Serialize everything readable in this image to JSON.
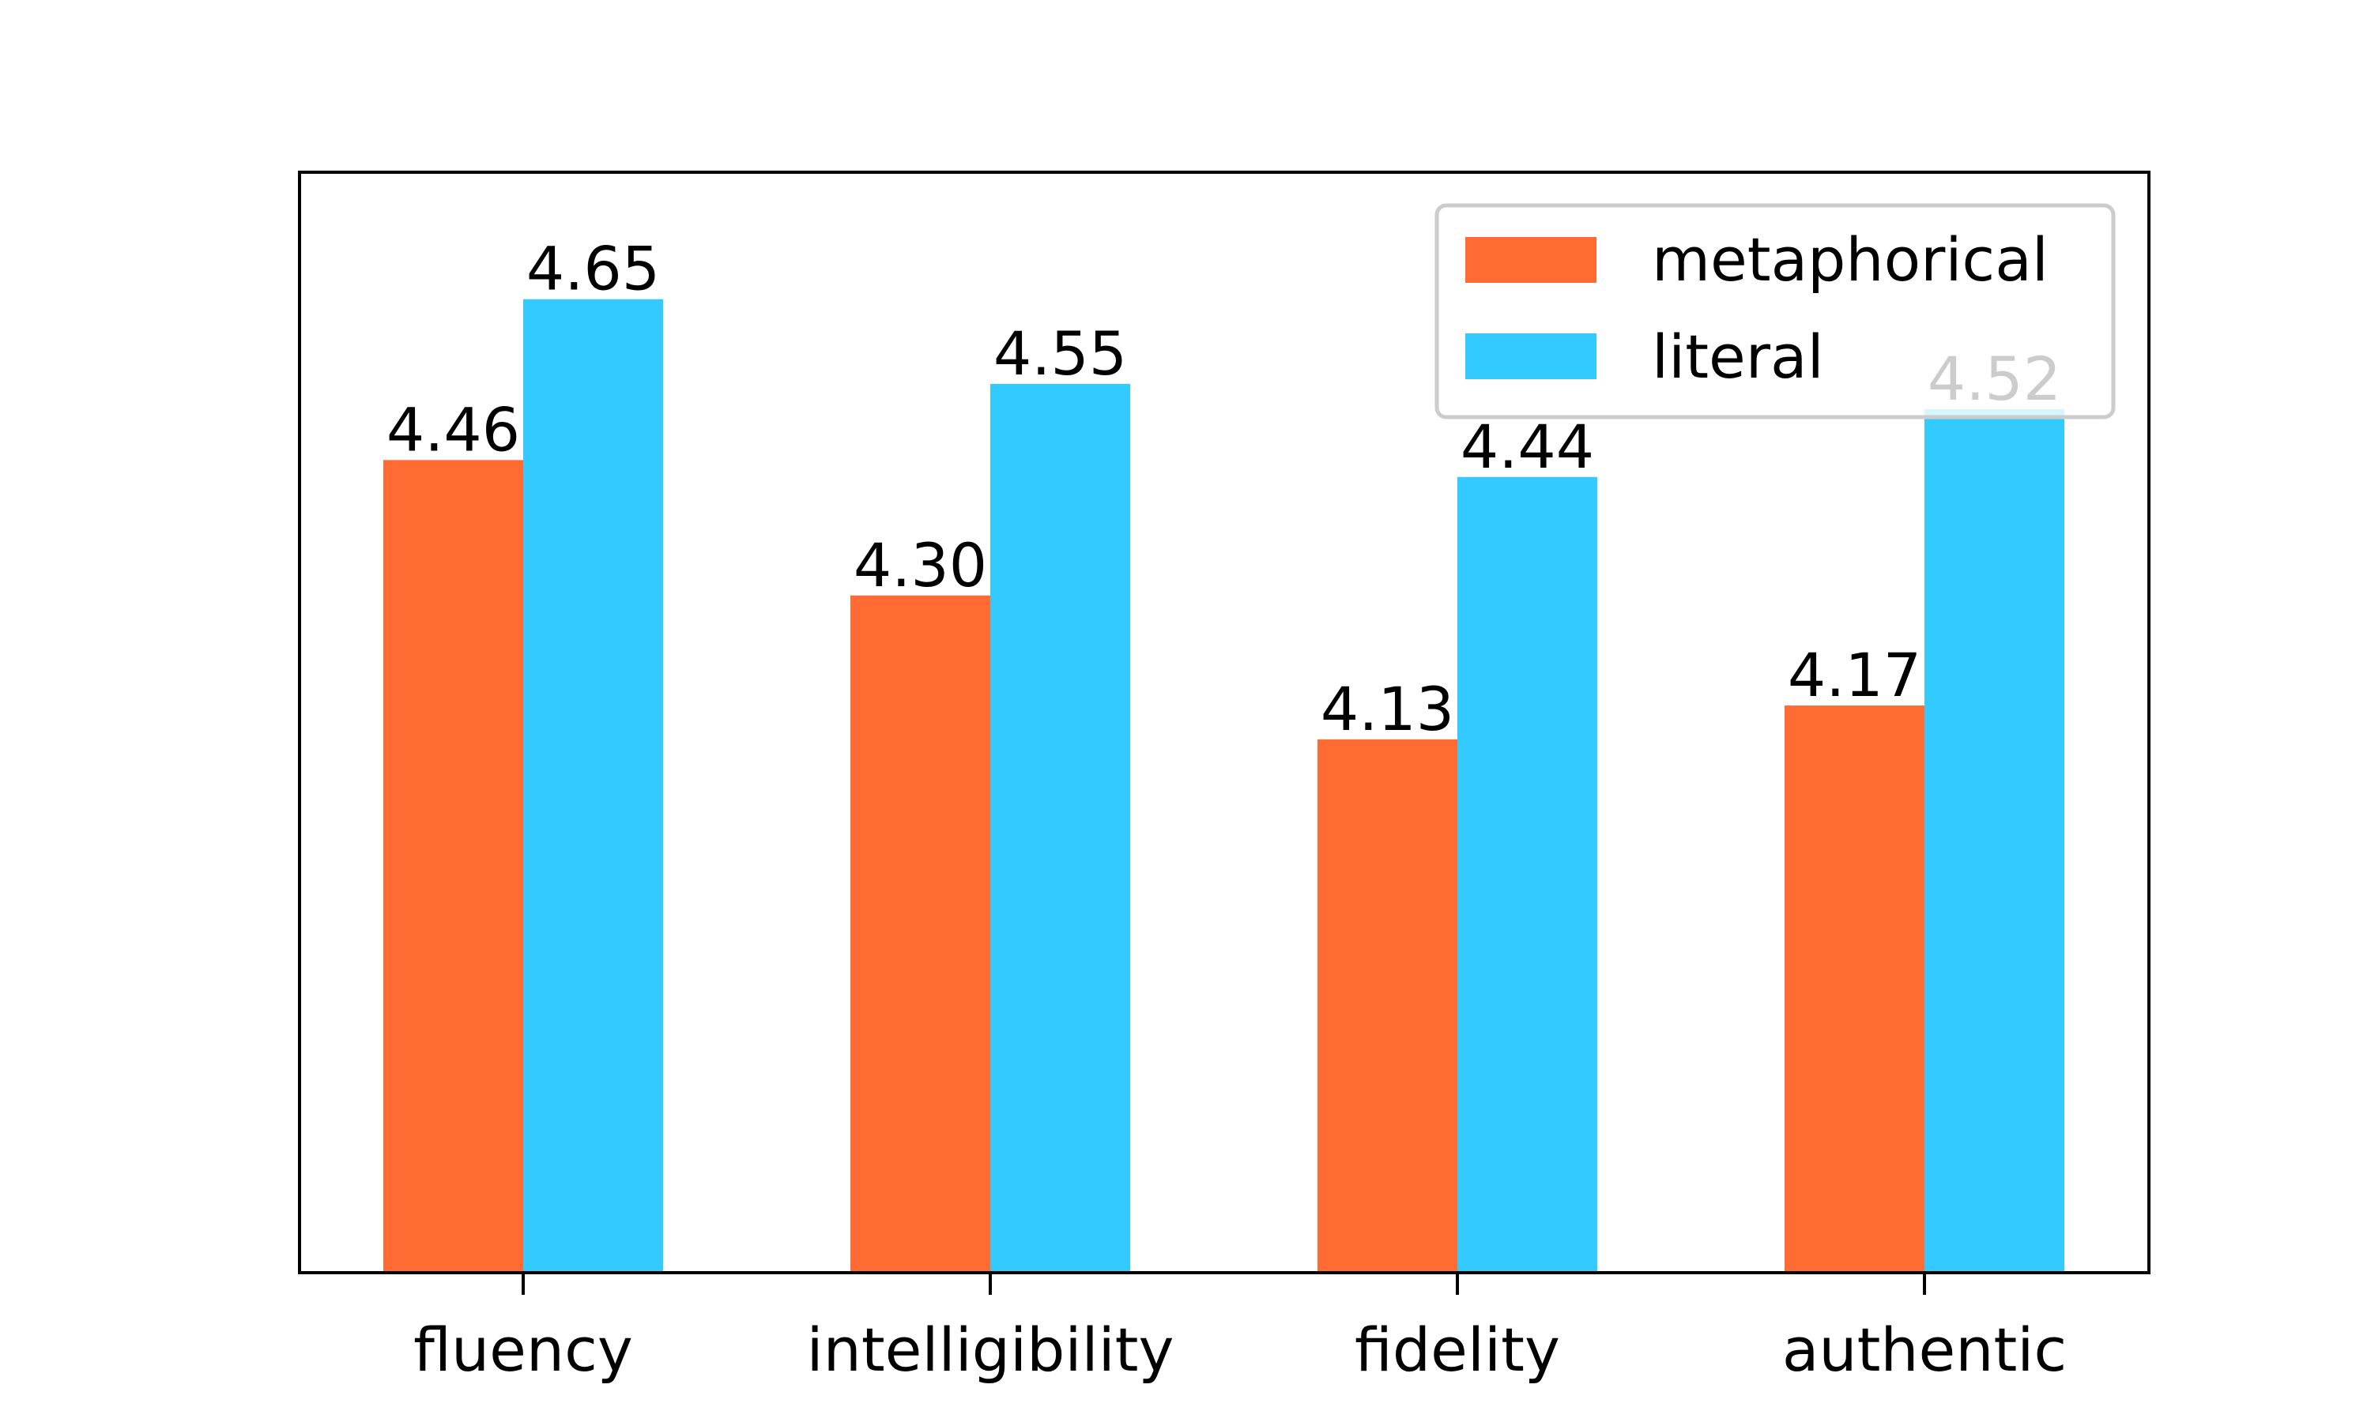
{
  "chart_data": {
    "type": "bar",
    "categories": [
      "fluency",
      "intelligibility",
      "fidelity",
      "authentic"
    ],
    "series": [
      {
        "name": "metaphorical",
        "values": [
          4.46,
          4.3,
          4.13,
          4.17
        ],
        "labels": [
          "4.46",
          "4.30",
          "4.13",
          "4.17"
        ],
        "color": "#ff6b33"
      },
      {
        "name": "literal",
        "values": [
          4.65,
          4.55,
          4.44,
          4.52
        ],
        "labels": [
          "4.65",
          "4.55",
          "4.44",
          "4.52"
        ],
        "color": "#33cbff"
      }
    ],
    "ylim": [
      3.5,
      4.8
    ],
    "title": "",
    "xlabel": "",
    "ylabel": "",
    "y_ticks_visible": false,
    "grid": false,
    "legend_position": "top-right"
  }
}
